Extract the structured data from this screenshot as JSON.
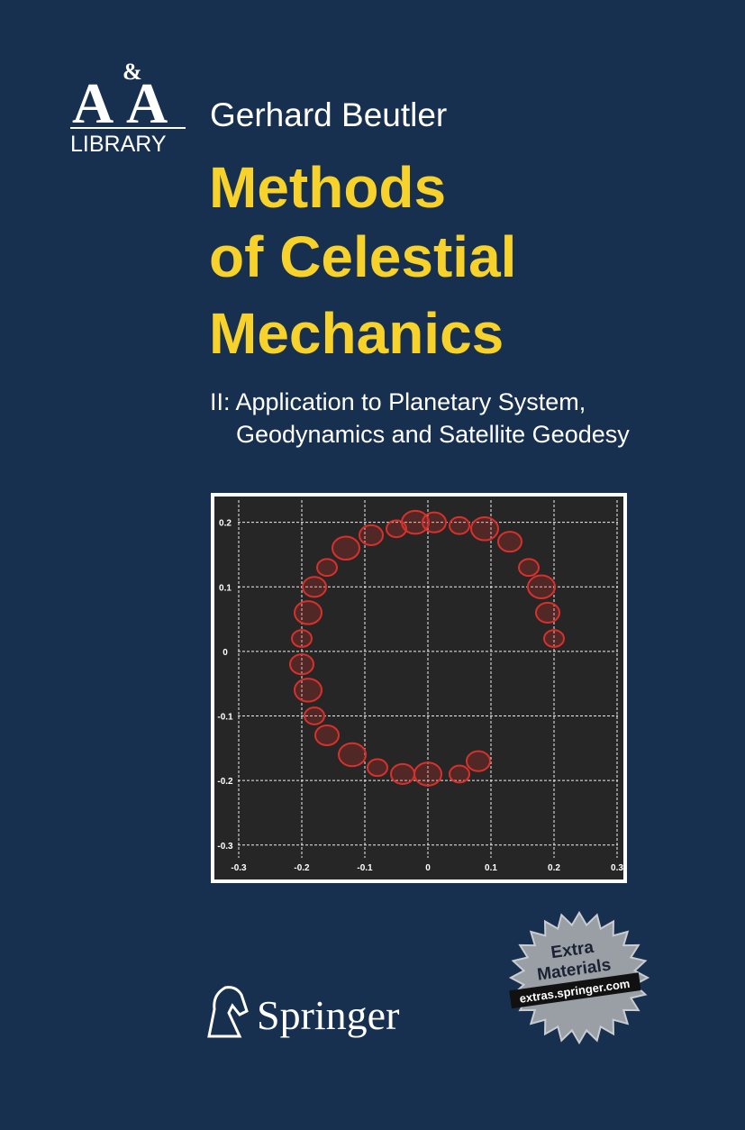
{
  "cover": {
    "logo": {
      "left": "A",
      "amp": "&",
      "right": "A",
      "label": "LIBRARY"
    },
    "author": "Gerhard Beutler",
    "title": [
      "Methods",
      "of Celestial",
      "Mechanics"
    ],
    "subtitle": [
      "II: Application to Planetary System,",
      "Geodynamics and Satellite Geodesy"
    ],
    "badge": {
      "line1": "Extra",
      "line2": "Materials",
      "url": "extras.springer.com"
    },
    "publisher": "Springer"
  },
  "chart_data": {
    "type": "scatter",
    "x": [
      0.2,
      0.19,
      0.18,
      0.16,
      0.13,
      0.09,
      0.05,
      0.01,
      -0.02,
      -0.05,
      -0.09,
      -0.13,
      -0.16,
      -0.18,
      -0.19,
      -0.2,
      -0.2,
      -0.19,
      -0.18,
      -0.16,
      -0.12,
      -0.08,
      -0.04,
      0.0,
      0.05,
      0.08
    ],
    "series": [
      {
        "color": "#d8312c",
        "values": [
          0.02,
          0.06,
          0.1,
          0.13,
          0.17,
          0.19,
          0.195,
          0.2,
          0.2,
          0.19,
          0.18,
          0.16,
          0.13,
          0.1,
          0.06,
          0.02,
          -0.02,
          -0.06,
          -0.1,
          -0.13,
          -0.16,
          -0.18,
          -0.19,
          -0.19,
          -0.19,
          -0.17
        ]
      }
    ],
    "xlim": [
      -0.33,
      0.31
    ],
    "ylim": [
      -0.345,
      0.24
    ],
    "xticks": [
      -0.3,
      -0.2,
      -0.1,
      0,
      0.1,
      0.2,
      0.3
    ],
    "yticks": [
      0.2,
      0.1,
      0,
      -0.1,
      -0.2,
      -0.3
    ],
    "grid": true
  }
}
